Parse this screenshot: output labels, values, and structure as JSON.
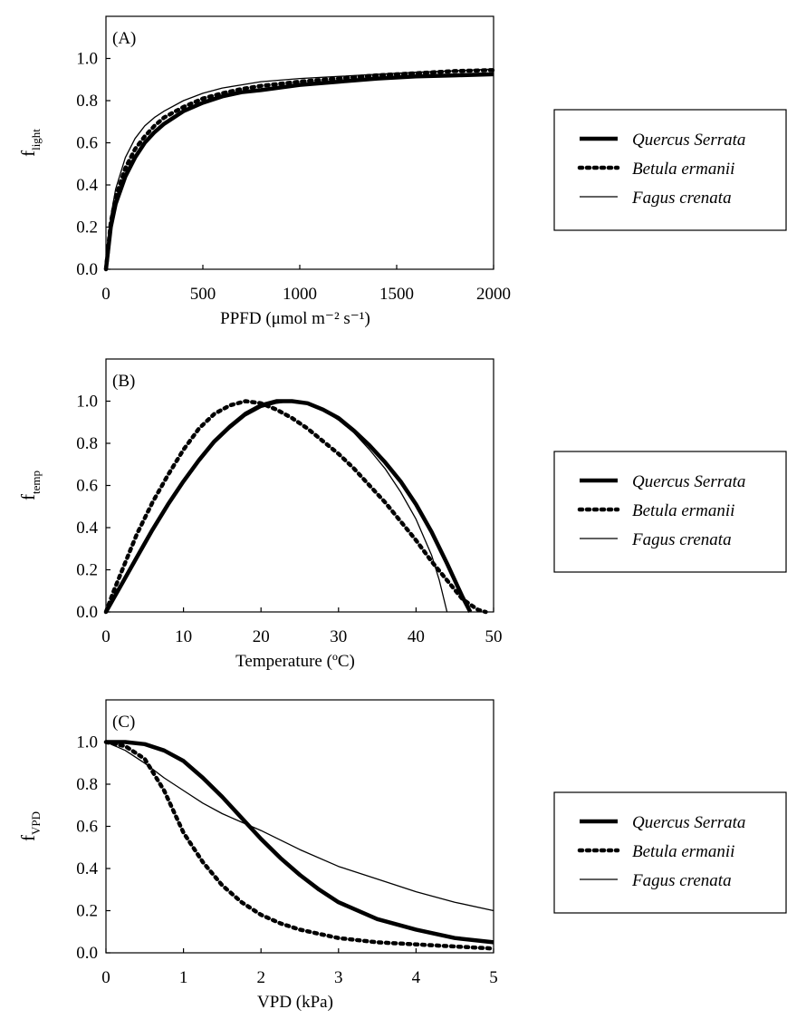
{
  "colors": {
    "line": "#000000",
    "background": "#ffffff"
  },
  "legend": [
    {
      "label": "Quercus Serrata",
      "style": "thick-solid"
    },
    {
      "label": "Betula ermanii",
      "style": "thick-dotted"
    },
    {
      "label": "Fagus crenata",
      "style": "thin-solid"
    }
  ],
  "chart_data": [
    {
      "type": "line",
      "panel_label": "(A)",
      "ylabel_main": "f",
      "ylabel_sub": "light",
      "xlabel": "PPFD (μmol m⁻² s⁻¹)",
      "xlim": [
        0,
        2000
      ],
      "ylim": [
        0,
        1.2
      ],
      "xticks": [
        0,
        500,
        1000,
        1500,
        2000
      ],
      "xtick_labels": [
        "0",
        "500",
        "1000",
        "1500",
        "2000"
      ],
      "yticks": [
        0,
        0.2,
        0.4,
        0.6,
        0.8,
        1.0
      ],
      "ytick_labels": [
        "0.0",
        "0.2",
        "0.4",
        "0.6",
        "0.8",
        "1.0"
      ],
      "grid": false,
      "legend_position": "right",
      "series": [
        {
          "name": "Quercus Serrata",
          "style": "thick-solid",
          "x": [
            0,
            25,
            50,
            100,
            150,
            200,
            250,
            300,
            400,
            500,
            600,
            700,
            800,
            1000,
            1200,
            1400,
            1600,
            1800,
            2000
          ],
          "y": [
            0.0,
            0.2,
            0.31,
            0.44,
            0.53,
            0.6,
            0.65,
            0.69,
            0.75,
            0.79,
            0.82,
            0.84,
            0.85,
            0.875,
            0.89,
            0.905,
            0.915,
            0.92,
            0.925
          ]
        },
        {
          "name": "Betula ermanii",
          "style": "thick-dotted",
          "x": [
            0,
            25,
            50,
            100,
            150,
            200,
            250,
            300,
            400,
            500,
            600,
            700,
            800,
            1000,
            1200,
            1400,
            1600,
            1800,
            2000
          ],
          "y": [
            0.0,
            0.22,
            0.34,
            0.48,
            0.57,
            0.63,
            0.68,
            0.72,
            0.77,
            0.81,
            0.835,
            0.855,
            0.87,
            0.89,
            0.905,
            0.92,
            0.93,
            0.94,
            0.945
          ]
        },
        {
          "name": "Fagus crenata",
          "style": "thin-solid",
          "x": [
            0,
            25,
            50,
            100,
            150,
            200,
            250,
            300,
            400,
            500,
            600,
            700,
            800,
            1000,
            1200,
            1400,
            1600,
            1800,
            2000
          ],
          "y": [
            0.0,
            0.25,
            0.38,
            0.53,
            0.62,
            0.68,
            0.72,
            0.75,
            0.8,
            0.835,
            0.86,
            0.875,
            0.89,
            0.905,
            0.915,
            0.925,
            0.935,
            0.942,
            0.95
          ]
        }
      ]
    },
    {
      "type": "line",
      "panel_label": "(B)",
      "ylabel_main": "f",
      "ylabel_sub": "temp",
      "xlabel": "Temperature (ºC)",
      "xlim": [
        0,
        50
      ],
      "ylim": [
        0,
        1.2
      ],
      "xticks": [
        0,
        10,
        20,
        30,
        40,
        50
      ],
      "xtick_labels": [
        "0",
        "10",
        "20",
        "30",
        "40",
        "50"
      ],
      "yticks": [
        0,
        0.2,
        0.4,
        0.6,
        0.8,
        1.0
      ],
      "ytick_labels": [
        "0.0",
        "0.2",
        "0.4",
        "0.6",
        "0.8",
        "1.0"
      ],
      "grid": false,
      "legend_position": "right",
      "series": [
        {
          "name": "Quercus Serrata",
          "style": "thick-solid",
          "x": [
            0,
            2,
            4,
            6,
            8,
            10,
            12,
            14,
            16,
            18,
            20,
            22,
            24,
            26,
            28,
            30,
            32,
            34,
            36,
            38,
            40,
            42,
            44,
            45,
            46,
            47
          ],
          "y": [
            0.0,
            0.13,
            0.26,
            0.39,
            0.51,
            0.62,
            0.72,
            0.81,
            0.88,
            0.94,
            0.98,
            1.0,
            1.0,
            0.99,
            0.96,
            0.92,
            0.86,
            0.79,
            0.71,
            0.62,
            0.51,
            0.38,
            0.23,
            0.15,
            0.07,
            0.0
          ]
        },
        {
          "name": "Betula ermanii",
          "style": "thick-dotted",
          "x": [
            0,
            1,
            2,
            4,
            6,
            8,
            10,
            12,
            14,
            16,
            18,
            20,
            22,
            24,
            26,
            28,
            30,
            32,
            34,
            36,
            38,
            40,
            42,
            44,
            46,
            48,
            49
          ],
          "y": [
            0.0,
            0.1,
            0.19,
            0.37,
            0.52,
            0.65,
            0.77,
            0.87,
            0.94,
            0.98,
            1.0,
            0.99,
            0.96,
            0.92,
            0.87,
            0.81,
            0.75,
            0.68,
            0.6,
            0.52,
            0.43,
            0.34,
            0.24,
            0.15,
            0.06,
            0.01,
            0.0
          ]
        },
        {
          "name": "Fagus crenata",
          "style": "thin-solid",
          "x": [
            0,
            2,
            4,
            6,
            8,
            10,
            12,
            14,
            16,
            18,
            20,
            22,
            24,
            26,
            28,
            30,
            32,
            34,
            36,
            38,
            40,
            42,
            43,
            44
          ],
          "y": [
            0.0,
            0.13,
            0.26,
            0.38,
            0.5,
            0.61,
            0.71,
            0.8,
            0.87,
            0.93,
            0.97,
            0.99,
            1.0,
            0.99,
            0.96,
            0.91,
            0.85,
            0.77,
            0.68,
            0.57,
            0.44,
            0.27,
            0.15,
            0.0
          ]
        }
      ]
    },
    {
      "type": "line",
      "panel_label": "(C)",
      "ylabel_main": "f",
      "ylabel_sub": "VPD",
      "xlabel": "VPD (kPa)",
      "xlim": [
        0,
        5
      ],
      "ylim": [
        0,
        1.2
      ],
      "xticks": [
        0,
        1,
        2,
        3,
        4,
        5
      ],
      "xtick_labels": [
        "0",
        "1",
        "2",
        "3",
        "4",
        "5"
      ],
      "yticks": [
        0,
        0.2,
        0.4,
        0.6,
        0.8,
        1.0
      ],
      "ytick_labels": [
        "0.0",
        "0.2",
        "0.4",
        "0.6",
        "0.8",
        "1.0"
      ],
      "grid": false,
      "legend_position": "right",
      "series": [
        {
          "name": "Quercus Serrata",
          "style": "thick-solid",
          "x": [
            0,
            0.25,
            0.5,
            0.75,
            1.0,
            1.25,
            1.5,
            1.75,
            2.0,
            2.25,
            2.5,
            2.75,
            3.0,
            3.5,
            4.0,
            4.5,
            5.0
          ],
          "y": [
            1.0,
            1.0,
            0.99,
            0.96,
            0.91,
            0.83,
            0.74,
            0.64,
            0.54,
            0.45,
            0.37,
            0.3,
            0.24,
            0.16,
            0.11,
            0.07,
            0.05
          ]
        },
        {
          "name": "Betula ermanii",
          "style": "thick-dotted",
          "x": [
            0,
            0.25,
            0.5,
            0.75,
            1.0,
            1.25,
            1.5,
            1.75,
            2.0,
            2.25,
            2.5,
            2.75,
            3.0,
            3.5,
            4.0,
            4.5,
            5.0
          ],
          "y": [
            1.0,
            0.98,
            0.92,
            0.77,
            0.57,
            0.43,
            0.32,
            0.24,
            0.18,
            0.14,
            0.11,
            0.09,
            0.07,
            0.05,
            0.04,
            0.03,
            0.02
          ]
        },
        {
          "name": "Fagus crenata",
          "style": "thin-solid",
          "x": [
            0,
            0.25,
            0.5,
            0.75,
            1.0,
            1.25,
            1.5,
            1.75,
            2.0,
            2.5,
            3.0,
            3.5,
            4.0,
            4.5,
            5.0
          ],
          "y": [
            1.0,
            0.96,
            0.9,
            0.83,
            0.77,
            0.71,
            0.66,
            0.62,
            0.58,
            0.49,
            0.41,
            0.35,
            0.29,
            0.24,
            0.2
          ]
        }
      ]
    }
  ]
}
